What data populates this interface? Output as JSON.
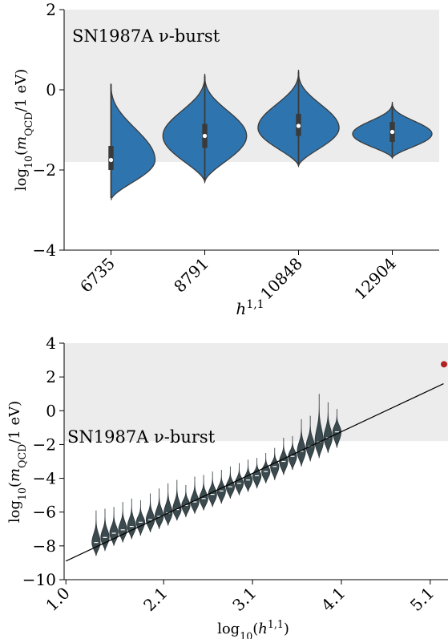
{
  "chart_data": [
    {
      "type": "violin",
      "annotation": "SN1987A ν-burst",
      "xlabel": "h¹ʹ¹",
      "ylabel": "log₁₀(m_QCD/1 eV)",
      "ylim": [
        -4,
        2
      ],
      "yticks": [
        -4,
        -2,
        0,
        2
      ],
      "excluded_region_y": [
        -1.8,
        2
      ],
      "categories": [
        "6735",
        "8791",
        "10848",
        "12904"
      ],
      "color": "#2e75b0",
      "violins": [
        {
          "category": "6735",
          "min": -2.75,
          "max": 0.2,
          "median": -1.75,
          "q1": -2.0,
          "q3": -1.4,
          "mode": -1.75,
          "width": 1.0
        },
        {
          "category": "8791",
          "min": -2.3,
          "max": 0.4,
          "median": -1.15,
          "q1": -1.45,
          "q3": -0.85,
          "mode": -1.15,
          "width": 0.95
        },
        {
          "category": "10848",
          "min": -1.9,
          "max": 0.5,
          "median": -0.9,
          "q1": -1.15,
          "q3": -0.6,
          "mode": -0.95,
          "width": 0.92
        },
        {
          "category": "12904",
          "min": -1.7,
          "max": -0.3,
          "median": -1.05,
          "q1": -1.3,
          "q3": -0.8,
          "mode": -1.1,
          "width": 0.9
        }
      ]
    },
    {
      "type": "violin",
      "annotation": "SN1987A ν-burst",
      "xlabel": "log₁₀(h¹ʹ¹)",
      "ylabel": "log₁₀(m_QCD/1 eV)",
      "ylim": [
        -10,
        4
      ],
      "xlim": [
        0.98,
        5.3
      ],
      "yticks": [
        -10,
        -8,
        -6,
        -4,
        -2,
        0,
        2,
        4
      ],
      "xticks": [
        "1.0",
        "2.1",
        "3.1",
        "4.1",
        "5.1"
      ],
      "xtick_values": [
        1.0,
        2.1,
        3.1,
        4.1,
        5.1
      ],
      "excluded_region_y": [
        -1.8,
        4
      ],
      "violin_color": "#3b4a4e",
      "fit_line": {
        "x": [
          1.0,
          5.25
        ],
        "y": [
          -8.9,
          1.6
        ]
      },
      "outlier_point": {
        "x": 5.27,
        "y": 2.75,
        "color": "#b22222"
      },
      "violins": [
        {
          "x": 1.34,
          "median": -7.8,
          "min": -8.6,
          "max": -5.9
        },
        {
          "x": 1.44,
          "median": -7.5,
          "min": -8.3,
          "max": -5.8
        },
        {
          "x": 1.54,
          "median": -7.25,
          "min": -8.0,
          "max": -5.7
        },
        {
          "x": 1.64,
          "median": -7.05,
          "min": -7.8,
          "max": -5.4
        },
        {
          "x": 1.74,
          "median": -6.85,
          "min": -7.6,
          "max": -5.2
        },
        {
          "x": 1.84,
          "median": -6.6,
          "min": -7.4,
          "max": -5.3
        },
        {
          "x": 1.95,
          "median": -6.45,
          "min": -7.2,
          "max": -4.9
        },
        {
          "x": 2.05,
          "median": -6.25,
          "min": -7.0,
          "max": -4.6
        },
        {
          "x": 2.15,
          "median": -6.05,
          "min": -6.8,
          "max": -4.3
        },
        {
          "x": 2.25,
          "median": -5.85,
          "min": -6.5,
          "max": -4.1
        },
        {
          "x": 2.35,
          "median": -5.6,
          "min": -6.3,
          "max": -4.4
        },
        {
          "x": 2.45,
          "median": -5.4,
          "min": -6.1,
          "max": -3.9
        },
        {
          "x": 2.55,
          "median": -5.2,
          "min": -5.9,
          "max": -3.8
        },
        {
          "x": 2.65,
          "median": -4.95,
          "min": -5.7,
          "max": -3.6
        },
        {
          "x": 2.75,
          "median": -4.75,
          "min": -5.5,
          "max": -3.5
        },
        {
          "x": 2.85,
          "median": -4.5,
          "min": -5.2,
          "max": -3.3
        },
        {
          "x": 2.95,
          "median": -4.3,
          "min": -5.0,
          "max": -3.1
        },
        {
          "x": 3.05,
          "median": -4.1,
          "min": -4.8,
          "max": -2.9
        },
        {
          "x": 3.15,
          "median": -3.85,
          "min": -4.6,
          "max": -2.8
        },
        {
          "x": 3.25,
          "median": -3.6,
          "min": -4.3,
          "max": -2.5
        },
        {
          "x": 3.35,
          "median": -3.3,
          "min": -4.1,
          "max": -2.2
        },
        {
          "x": 3.45,
          "median": -3.0,
          "min": -3.8,
          "max": -1.6
        },
        {
          "x": 3.55,
          "median": -2.7,
          "min": -3.5,
          "max": -1.5
        },
        {
          "x": 3.65,
          "median": -2.4,
          "min": -3.3,
          "max": -0.5
        },
        {
          "x": 3.75,
          "median": -2.1,
          "min": -3.0,
          "max": -0.3
        },
        {
          "x": 3.85,
          "median": -1.85,
          "min": -2.8,
          "max": 1.0
        },
        {
          "x": 3.95,
          "median": -1.6,
          "min": -2.5,
          "max": 0.5
        },
        {
          "x": 4.05,
          "median": -1.25,
          "min": -2.2,
          "max": 0.1
        }
      ]
    }
  ]
}
